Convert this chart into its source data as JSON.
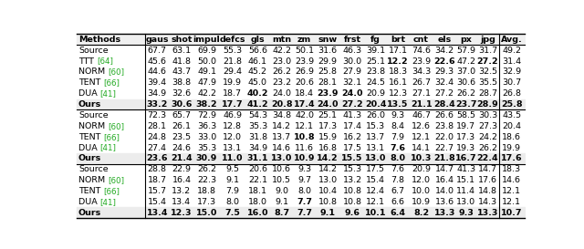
{
  "columns": [
    "Methods",
    "gaus",
    "shot",
    "impul",
    "defcs",
    "gls",
    "mtn",
    "zm",
    "snw",
    "frst",
    "fg",
    "brt",
    "cnt",
    "els",
    "px",
    "jpg",
    "Avg."
  ],
  "section1": [
    {
      "name": "Source",
      "ref": null,
      "values": [
        "67.7",
        "63.1",
        "69.9",
        "55.3",
        "56.6",
        "42.2",
        "50.1",
        "31.6",
        "46.3",
        "39.1",
        "17.1",
        "74.6",
        "34.2",
        "57.9",
        "31.7",
        "49.2"
      ]
    },
    {
      "name": "TTT",
      "ref": "[64]",
      "values": [
        "45.6",
        "41.8",
        "50.0",
        "21.8",
        "46.1",
        "23.0",
        "23.9",
        "29.9",
        "30.0",
        "25.1",
        "12.2",
        "23.9",
        "22.6",
        "47.2",
        "27.2",
        "31.4"
      ]
    },
    {
      "name": "NORM",
      "ref": "[60]",
      "values": [
        "44.6",
        "43.7",
        "49.1",
        "29.4",
        "45.2",
        "26.2",
        "26.9",
        "25.8",
        "27.9",
        "23.8",
        "18.3",
        "34.3",
        "29.3",
        "37.0",
        "32.5",
        "32.9"
      ]
    },
    {
      "name": "TENT",
      "ref": "[66]",
      "values": [
        "39.4",
        "38.8",
        "47.9",
        "19.9",
        "45.0",
        "23.2",
        "20.6",
        "28.1",
        "32.1",
        "24.5",
        "16.1",
        "26.7",
        "32.4",
        "30.6",
        "35.5",
        "30.7"
      ]
    },
    {
      "name": "DUA",
      "ref": "[41]",
      "values": [
        "34.9",
        "32.6",
        "42.2",
        "18.7",
        "40.2",
        "24.0",
        "18.4",
        "23.9",
        "24.0",
        "20.9",
        "12.3",
        "27.1",
        "27.2",
        "26.2",
        "28.7",
        "26.8"
      ]
    },
    {
      "name": "Ours",
      "ref": null,
      "values": [
        "33.2",
        "30.6",
        "38.2",
        "17.7",
        "41.2",
        "20.8",
        "17.4",
        "24.0",
        "27.2",
        "20.4",
        "13.5",
        "21.1",
        "28.4",
        "23.7",
        "28.9",
        "25.8"
      ]
    }
  ],
  "section2": [
    {
      "name": "Source",
      "ref": null,
      "values": [
        "72.3",
        "65.7",
        "72.9",
        "46.9",
        "54.3",
        "34.8",
        "42.0",
        "25.1",
        "41.3",
        "26.0",
        "9.3",
        "46.7",
        "26.6",
        "58.5",
        "30.3",
        "43.5"
      ]
    },
    {
      "name": "NORM",
      "ref": "[60]",
      "values": [
        "28.1",
        "26.1",
        "36.3",
        "12.8",
        "35.3",
        "14.2",
        "12.1",
        "17.3",
        "17.4",
        "15.3",
        "8.4",
        "12.6",
        "23.8",
        "19.7",
        "27.3",
        "20.4"
      ]
    },
    {
      "name": "TENT",
      "ref": "[66]",
      "values": [
        "24.8",
        "23.5",
        "33.0",
        "12.0",
        "31.8",
        "13.7",
        "10.8",
        "15.9",
        "16.2",
        "13.7",
        "7.9",
        "12.1",
        "22.0",
        "17.3",
        "24.2",
        "18.6"
      ]
    },
    {
      "name": "DUA",
      "ref": "[41]",
      "values": [
        "27.4",
        "24.6",
        "35.3",
        "13.1",
        "34.9",
        "14.6",
        "11.6",
        "16.8",
        "17.5",
        "13.1",
        "7.6",
        "14.1",
        "22.7",
        "19.3",
        "26.2",
        "19.9"
      ]
    },
    {
      "name": "Ours",
      "ref": null,
      "values": [
        "23.6",
        "21.4",
        "30.9",
        "11.0",
        "31.1",
        "13.0",
        "10.9",
        "14.2",
        "15.5",
        "13.0",
        "8.0",
        "10.3",
        "21.8",
        "16.7",
        "22.4",
        "17.6"
      ]
    }
  ],
  "section3": [
    {
      "name": "Source",
      "ref": null,
      "values": [
        "28.8",
        "22.9",
        "26.2",
        "9.5",
        "20.6",
        "10.6",
        "9.3",
        "14.2",
        "15.3",
        "17.5",
        "7.6",
        "20.9",
        "14.7",
        "41.3",
        "14.7",
        "18.3"
      ]
    },
    {
      "name": "NORM",
      "ref": "[60]",
      "values": [
        "18.7",
        "16.4",
        "22.3",
        "9.1",
        "22.1",
        "10.5",
        "9.7",
        "13.0",
        "13.2",
        "15.4",
        "7.8",
        "12.0",
        "16.4",
        "15.1",
        "17.6",
        "14.6"
      ]
    },
    {
      "name": "TENT",
      "ref": "[66]",
      "values": [
        "15.7",
        "13.2",
        "18.8",
        "7.9",
        "18.1",
        "9.0",
        "8.0",
        "10.4",
        "10.8",
        "12.4",
        "6.7",
        "10.0",
        "14.0",
        "11.4",
        "14.8",
        "12.1"
      ]
    },
    {
      "name": "DUA",
      "ref": "[41]",
      "values": [
        "15.4",
        "13.4",
        "17.3",
        "8.0",
        "18.0",
        "9.1",
        "7.7",
        "10.8",
        "10.8",
        "12.1",
        "6.6",
        "10.9",
        "13.6",
        "13.0",
        "14.3",
        "12.1"
      ]
    },
    {
      "name": "Ours",
      "ref": null,
      "values": [
        "13.4",
        "12.3",
        "15.0",
        "7.5",
        "16.0",
        "8.7",
        "7.7",
        "9.1",
        "9.6",
        "10.1",
        "6.4",
        "8.2",
        "13.3",
        "9.3",
        "13.3",
        "10.7"
      ]
    }
  ],
  "bold_s1": {
    "TTT": [
      10,
      12,
      14
    ],
    "DUA": [
      4,
      7,
      8
    ],
    "Ours": [
      0,
      1,
      2,
      3,
      5,
      6,
      7,
      10,
      11,
      12,
      13,
      15
    ]
  },
  "bold_s2": {
    "TENT": [
      6
    ],
    "DUA": [
      10
    ],
    "Ours": [
      0,
      1,
      2,
      3,
      4,
      5,
      7,
      8,
      9,
      11,
      12,
      13,
      14,
      15
    ]
  },
  "bold_s3": {
    "DUA": [
      6
    ],
    "Ours": [
      0,
      1,
      2,
      3,
      4,
      5,
      6,
      7,
      8,
      9,
      10,
      11,
      12,
      13,
      14,
      15
    ]
  },
  "ref_color": "#22aa22",
  "font_size": 6.8,
  "header_font_size": 6.8,
  "col_widths_rel": [
    1.9,
    0.68,
    0.68,
    0.72,
    0.72,
    0.68,
    0.65,
    0.62,
    0.68,
    0.68,
    0.62,
    0.62,
    0.68,
    0.62,
    0.58,
    0.62,
    0.72
  ]
}
